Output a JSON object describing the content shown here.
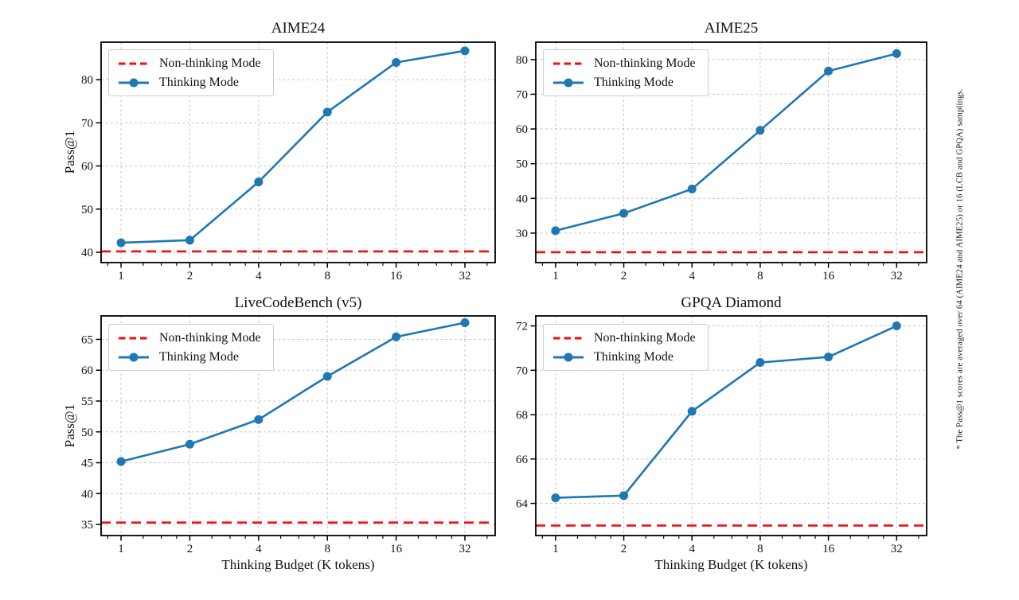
{
  "figure": {
    "footnote": "* The Pass@1 scores are averaged over 64 (AIME24 and AIME25) or 16 (LCB and GPQA) samplings.",
    "xlabel": "Thinking Budget (K tokens)",
    "ylabel": "Pass@1",
    "legend": {
      "non_thinking": "Non-thinking Mode",
      "thinking": "Thinking Mode"
    },
    "colors": {
      "thinking_blue": "#1f77b4",
      "non_thinking_red": "#f50d0d",
      "grid": "#c8c8c8",
      "spine": "#000000",
      "text": "#111111"
    }
  },
  "chart_data": [
    {
      "type": "line",
      "title": "AIME24",
      "xscale": "log2",
      "xticks": [
        1,
        2,
        4,
        8,
        16,
        32
      ],
      "ylim": [
        37.6,
        88.7
      ],
      "yticks": [
        40,
        50,
        60,
        70,
        80
      ],
      "ylabel": "Pass@1",
      "series": [
        {
          "name": "Thinking Mode",
          "style": "solid-circle-markers",
          "x": [
            1,
            2,
            4,
            8,
            16,
            32
          ],
          "y": [
            42.2,
            42.8,
            56.3,
            72.5,
            84.0,
            86.7
          ]
        },
        {
          "name": "Non-thinking Mode",
          "style": "dashed-horizontal-baseline",
          "y": 40.2
        }
      ]
    },
    {
      "type": "line",
      "title": "AIME25",
      "xscale": "log2",
      "xticks": [
        1,
        2,
        4,
        8,
        16,
        32
      ],
      "ylim": [
        21.5,
        85.0
      ],
      "yticks": [
        30,
        40,
        50,
        60,
        70,
        80
      ],
      "ylabel": "Pass@1",
      "series": [
        {
          "name": "Thinking Mode",
          "style": "solid-circle-markers",
          "x": [
            1,
            2,
            4,
            8,
            16,
            32
          ],
          "y": [
            30.7,
            35.7,
            42.7,
            59.6,
            76.7,
            81.7
          ]
        },
        {
          "name": "Non-thinking Mode",
          "style": "dashed-horizontal-baseline",
          "y": 24.5
        }
      ]
    },
    {
      "type": "line",
      "title": "LiveCodeBench (v5)",
      "xscale": "log2",
      "xticks": [
        1,
        2,
        4,
        8,
        16,
        32
      ],
      "ylim": [
        33.2,
        68.8
      ],
      "yticks": [
        35,
        40,
        45,
        50,
        55,
        60,
        65
      ],
      "ylabel": "Pass@1",
      "xlabel": "Thinking Budget (K tokens)",
      "series": [
        {
          "name": "Thinking Mode",
          "style": "solid-circle-markers",
          "x": [
            1,
            2,
            4,
            8,
            16,
            32
          ],
          "y": [
            45.2,
            48.0,
            52.0,
            59.0,
            65.4,
            67.7
          ]
        },
        {
          "name": "Non-thinking Mode",
          "style": "dashed-horizontal-baseline",
          "y": 35.3
        }
      ]
    },
    {
      "type": "line",
      "title": "GPQA Diamond",
      "xscale": "log2",
      "xticks": [
        1,
        2,
        4,
        8,
        16,
        32
      ],
      "ylim": [
        62.55,
        72.45
      ],
      "yticks": [
        64,
        66,
        68,
        70,
        72
      ],
      "xlabel": "Thinking Budget (K tokens)",
      "series": [
        {
          "name": "Thinking Mode",
          "style": "solid-circle-markers",
          "x": [
            1,
            2,
            4,
            8,
            16,
            32
          ],
          "y": [
            64.25,
            64.35,
            68.15,
            70.35,
            70.6,
            72.0
          ]
        },
        {
          "name": "Non-thinking Mode",
          "style": "dashed-horizontal-baseline",
          "y": 63.0
        }
      ]
    }
  ]
}
